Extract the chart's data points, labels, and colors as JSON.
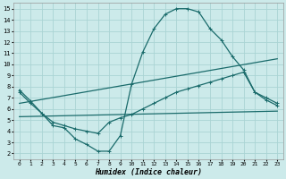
{
  "background_color": "#cceaea",
  "grid_color": "#aad4d4",
  "line_color": "#1a6b6b",
  "xlabel": "Humidex (Indice chaleur)",
  "xlim": [
    -0.5,
    23.5
  ],
  "ylim": [
    1.5,
    15.5
  ],
  "xticks": [
    0,
    1,
    2,
    3,
    4,
    5,
    6,
    7,
    8,
    9,
    10,
    11,
    12,
    13,
    14,
    15,
    16,
    17,
    18,
    19,
    20,
    21,
    22,
    23
  ],
  "yticks": [
    2,
    3,
    4,
    5,
    6,
    7,
    8,
    9,
    10,
    11,
    12,
    13,
    14,
    15
  ],
  "line1_x": [
    0,
    1,
    2,
    3,
    4,
    5,
    6,
    7,
    8,
    9,
    10,
    11,
    12,
    13,
    14,
    15,
    16,
    17,
    18,
    19,
    20,
    21,
    22,
    23
  ],
  "line1_y": [
    7.7,
    6.7,
    5.6,
    4.5,
    4.3,
    3.3,
    2.8,
    2.2,
    2.2,
    3.6,
    8.2,
    11.1,
    13.2,
    14.5,
    15.0,
    15.0,
    14.7,
    13.2,
    12.2,
    10.7,
    9.5,
    7.5,
    7.0,
    6.5
  ],
  "line2_x": [
    0,
    1,
    2,
    3,
    4,
    5,
    6,
    7,
    8,
    9,
    10,
    11,
    12,
    13,
    14,
    15,
    16,
    17,
    18,
    19,
    20,
    21,
    22,
    23
  ],
  "line2_y": [
    7.5,
    6.5,
    5.6,
    4.8,
    4.5,
    4.2,
    4.0,
    3.8,
    4.8,
    5.2,
    5.5,
    6.0,
    6.5,
    7.0,
    7.5,
    7.8,
    8.1,
    8.4,
    8.7,
    9.0,
    9.3,
    7.5,
    6.8,
    6.3
  ],
  "line3_x": [
    0,
    23
  ],
  "line3_y": [
    6.5,
    10.5
  ],
  "line4_x": [
    0,
    23
  ],
  "line4_y": [
    5.3,
    5.8
  ]
}
